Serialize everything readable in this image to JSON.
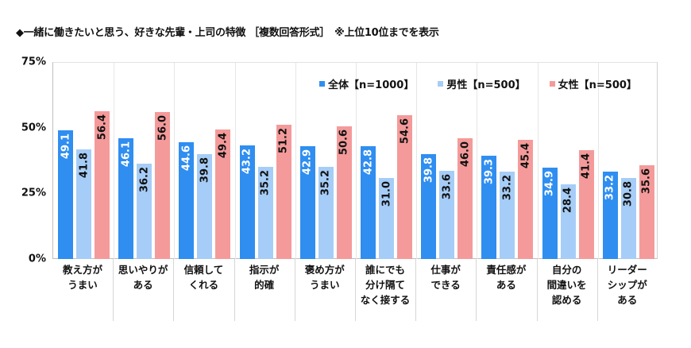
{
  "title": "◆一緒に働きたいと思う、好きな先輩・上司の特徴 ［複数回答形式］　※上位10位までを表示",
  "legend": [
    {
      "label": "全体【n=1000】",
      "color": "#2f8ef0"
    },
    {
      "label": "男性【n=500】",
      "color": "#a6cdf7"
    },
    {
      "label": "女性【n=500】",
      "color": "#f59a9a"
    }
  ],
  "y_ticks": [
    "75%",
    "50%",
    "25%",
    "0%"
  ],
  "categories": [
    [
      "教え方が",
      "うまい"
    ],
    [
      "思いやりが",
      "ある"
    ],
    [
      "信頼して",
      "くれる"
    ],
    [
      "指示が",
      "的確"
    ],
    [
      "褒め方が",
      "うまい"
    ],
    [
      "誰にでも",
      "分け隔て",
      "なく接する"
    ],
    [
      "仕事が",
      "できる"
    ],
    [
      "責任感が",
      "ある"
    ],
    [
      "自分の",
      "間違いを",
      "認める"
    ],
    [
      "リーダー",
      "シップが",
      "ある"
    ]
  ],
  "chart_data": {
    "type": "bar",
    "title": "◆一緒に働きたいと思う、好きな先輩・上司の特徴 ［複数回答形式］　※上位10位までを表示",
    "xlabel": "",
    "ylabel": "",
    "ylim": [
      0,
      75
    ],
    "y_ticks": [
      0,
      25,
      50,
      75
    ],
    "y_tick_format": "%",
    "grid": {
      "vertical_separators": true,
      "horizontal": false
    },
    "legend_position": "top-right inside plot",
    "categories": [
      "教え方がうまい",
      "思いやりがある",
      "信頼してくれる",
      "指示が的確",
      "褒め方がうまい",
      "誰にでも分け隔てなく接する",
      "仕事ができる",
      "責任感がある",
      "自分の間違いを認める",
      "リーダーシップがある"
    ],
    "series": [
      {
        "name": "全体【n=1000】",
        "color": "#2f8ef0",
        "label_color": "#ffffff",
        "values": [
          49.1,
          46.1,
          44.6,
          43.2,
          42.9,
          42.8,
          39.8,
          39.3,
          34.9,
          33.2
        ]
      },
      {
        "name": "男性【n=500】",
        "color": "#a6cdf7",
        "label_color": "#111111",
        "values": [
          41.8,
          36.2,
          39.8,
          35.2,
          35.2,
          31.0,
          33.6,
          33.2,
          28.4,
          30.8
        ]
      },
      {
        "name": "女性【n=500】",
        "color": "#f59a9a",
        "label_color": "#111111",
        "values": [
          56.4,
          56.0,
          49.4,
          51.2,
          50.6,
          54.6,
          46.0,
          45.4,
          41.4,
          35.6
        ]
      }
    ]
  }
}
